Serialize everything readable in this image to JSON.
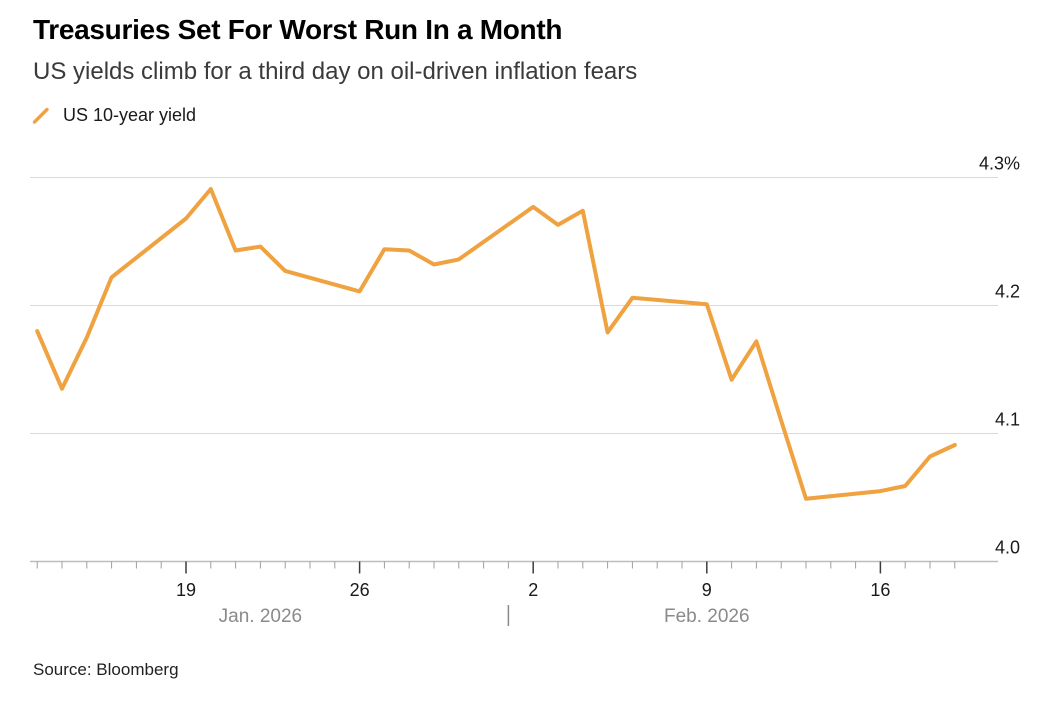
{
  "header": {
    "title": "Treasuries Set For Worst Run In a Month",
    "subtitle": "US yields climb for a third day on oil-driven inflation fears"
  },
  "legend": {
    "series_label": "US 10-year yield"
  },
  "source": {
    "text": "Source: Bloomberg"
  },
  "colors": {
    "accent_orange": "#EFA23F",
    "gridline": "#D9D9D9",
    "axis_line": "#BDBDBD",
    "minor_tick": "#9E9E9E",
    "major_tick": "#3c3c3c",
    "axis_label_dark": "#1a1a1a",
    "month_label_gray": "#8a8a8a"
  },
  "chart_data": {
    "type": "line",
    "title": "Treasuries Set For Worst Run In a Month",
    "subtitle": "US yields climb for a third day on oil-driven inflation fears",
    "xlabel": "",
    "ylabel": "US 10-year yield (%)",
    "unit": "%",
    "grid": true,
    "legend_position": "top-left",
    "ylim": [
      4.0,
      4.3
    ],
    "y_ticks": [
      {
        "value": 4.3,
        "label": "4.3%"
      },
      {
        "value": 4.2,
        "label": "4.2"
      },
      {
        "value": 4.1,
        "label": "4.1"
      },
      {
        "value": 4.0,
        "label": "4.0"
      }
    ],
    "x_axis": {
      "anchor_date": "2026-01-19",
      "range": [
        "2026-01-13",
        "2026-02-19"
      ],
      "minor_tick_every_days": 1,
      "major_ticks": [
        {
          "date": "2026-01-19",
          "label": "19"
        },
        {
          "date": "2026-01-26",
          "label": "26"
        },
        {
          "date": "2026-02-02",
          "label": "2"
        },
        {
          "date": "2026-02-09",
          "label": "9"
        },
        {
          "date": "2026-02-16",
          "label": "16"
        }
      ],
      "month_labels": [
        {
          "label": "Jan. 2026",
          "center_date": "2026-01-22"
        },
        {
          "label": "Feb. 2026",
          "center_date": "2026-02-09"
        }
      ],
      "month_divider_date": "2026-02-01"
    },
    "series": [
      {
        "name": "US 10-year yield",
        "color": "#EFA23F",
        "points": [
          {
            "date": "2026-01-13",
            "value": 4.18
          },
          {
            "date": "2026-01-14",
            "value": 4.135
          },
          {
            "date": "2026-01-15",
            "value": 4.175
          },
          {
            "date": "2026-01-16",
            "value": 4.222
          },
          {
            "date": "2026-01-19",
            "value": 4.268
          },
          {
            "date": "2026-01-20",
            "value": 4.291
          },
          {
            "date": "2026-01-21",
            "value": 4.243
          },
          {
            "date": "2026-01-22",
            "value": 4.246
          },
          {
            "date": "2026-01-23",
            "value": 4.227
          },
          {
            "date": "2026-01-26",
            "value": 4.211
          },
          {
            "date": "2026-01-27",
            "value": 4.244
          },
          {
            "date": "2026-01-28",
            "value": 4.243
          },
          {
            "date": "2026-01-29",
            "value": 4.232
          },
          {
            "date": "2026-01-30",
            "value": 4.236
          },
          {
            "date": "2026-02-02",
            "value": 4.277
          },
          {
            "date": "2026-02-03",
            "value": 4.263
          },
          {
            "date": "2026-02-04",
            "value": 4.274
          },
          {
            "date": "2026-02-05",
            "value": 4.179
          },
          {
            "date": "2026-02-06",
            "value": 4.206
          },
          {
            "date": "2026-02-09",
            "value": 4.201
          },
          {
            "date": "2026-02-10",
            "value": 4.142
          },
          {
            "date": "2026-02-11",
            "value": 4.172
          },
          {
            "date": "2026-02-12",
            "value": 4.11
          },
          {
            "date": "2026-02-13",
            "value": 4.049
          },
          {
            "date": "2026-02-16",
            "value": 4.055
          },
          {
            "date": "2026-02-17",
            "value": 4.059
          },
          {
            "date": "2026-02-18",
            "value": 4.082
          },
          {
            "date": "2026-02-19",
            "value": 4.091
          }
        ]
      }
    ]
  }
}
